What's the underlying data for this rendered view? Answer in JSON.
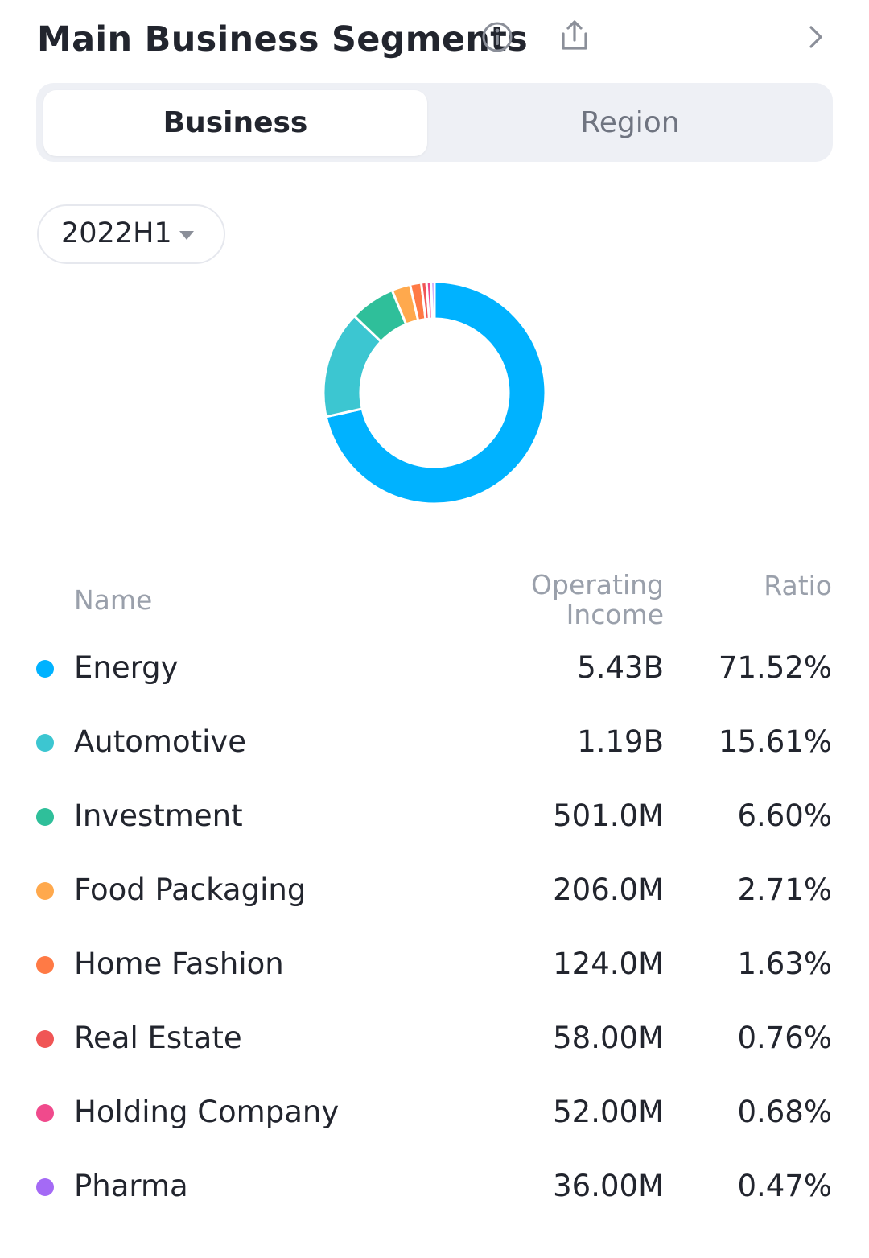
{
  "header": {
    "title": "Main Business Segments",
    "info_icon": "info-icon",
    "share_icon": "share-icon",
    "more_icon": "chevron-right-icon"
  },
  "tabs": [
    {
      "label": "Business",
      "active": true
    },
    {
      "label": "Region",
      "active": false
    }
  ],
  "period": {
    "selected": "2022H1"
  },
  "table": {
    "col_name": "Name",
    "col_income": "Operating Income",
    "col_ratio": "Ratio",
    "rows": [
      {
        "name": "Energy",
        "income": "5.43B",
        "ratio": "71.52%",
        "color": "#00b2ff"
      },
      {
        "name": "Automotive",
        "income": "1.19B",
        "ratio": "15.61%",
        "color": "#3cc6d1"
      },
      {
        "name": "Investment",
        "income": "501.0M",
        "ratio": "6.60%",
        "color": "#2fbf9a"
      },
      {
        "name": "Food Packaging",
        "income": "206.0M",
        "ratio": "2.71%",
        "color": "#ffa94d"
      },
      {
        "name": "Home Fashion",
        "income": "124.0M",
        "ratio": "1.63%",
        "color": "#ff7a45"
      },
      {
        "name": "Real Estate",
        "income": "58.00M",
        "ratio": "0.76%",
        "color": "#f05555"
      },
      {
        "name": "Holding Company",
        "income": "52.00M",
        "ratio": "0.68%",
        "color": "#f04a8c"
      },
      {
        "name": "Pharma",
        "income": "36.00M",
        "ratio": "0.47%",
        "color": "#a46af5"
      }
    ]
  },
  "chart_data": {
    "type": "pie",
    "title": "",
    "categories": [
      "Energy",
      "Automotive",
      "Investment",
      "Food Packaging",
      "Home Fashion",
      "Real Estate",
      "Holding Company",
      "Pharma"
    ],
    "values": [
      71.52,
      15.61,
      6.6,
      2.71,
      1.63,
      0.76,
      0.68,
      0.47
    ],
    "colors": [
      "#00b2ff",
      "#3cc6d1",
      "#2fbf9a",
      "#ffa94d",
      "#ff7a45",
      "#f05555",
      "#f04a8c",
      "#a46af5"
    ],
    "donut": true
  }
}
